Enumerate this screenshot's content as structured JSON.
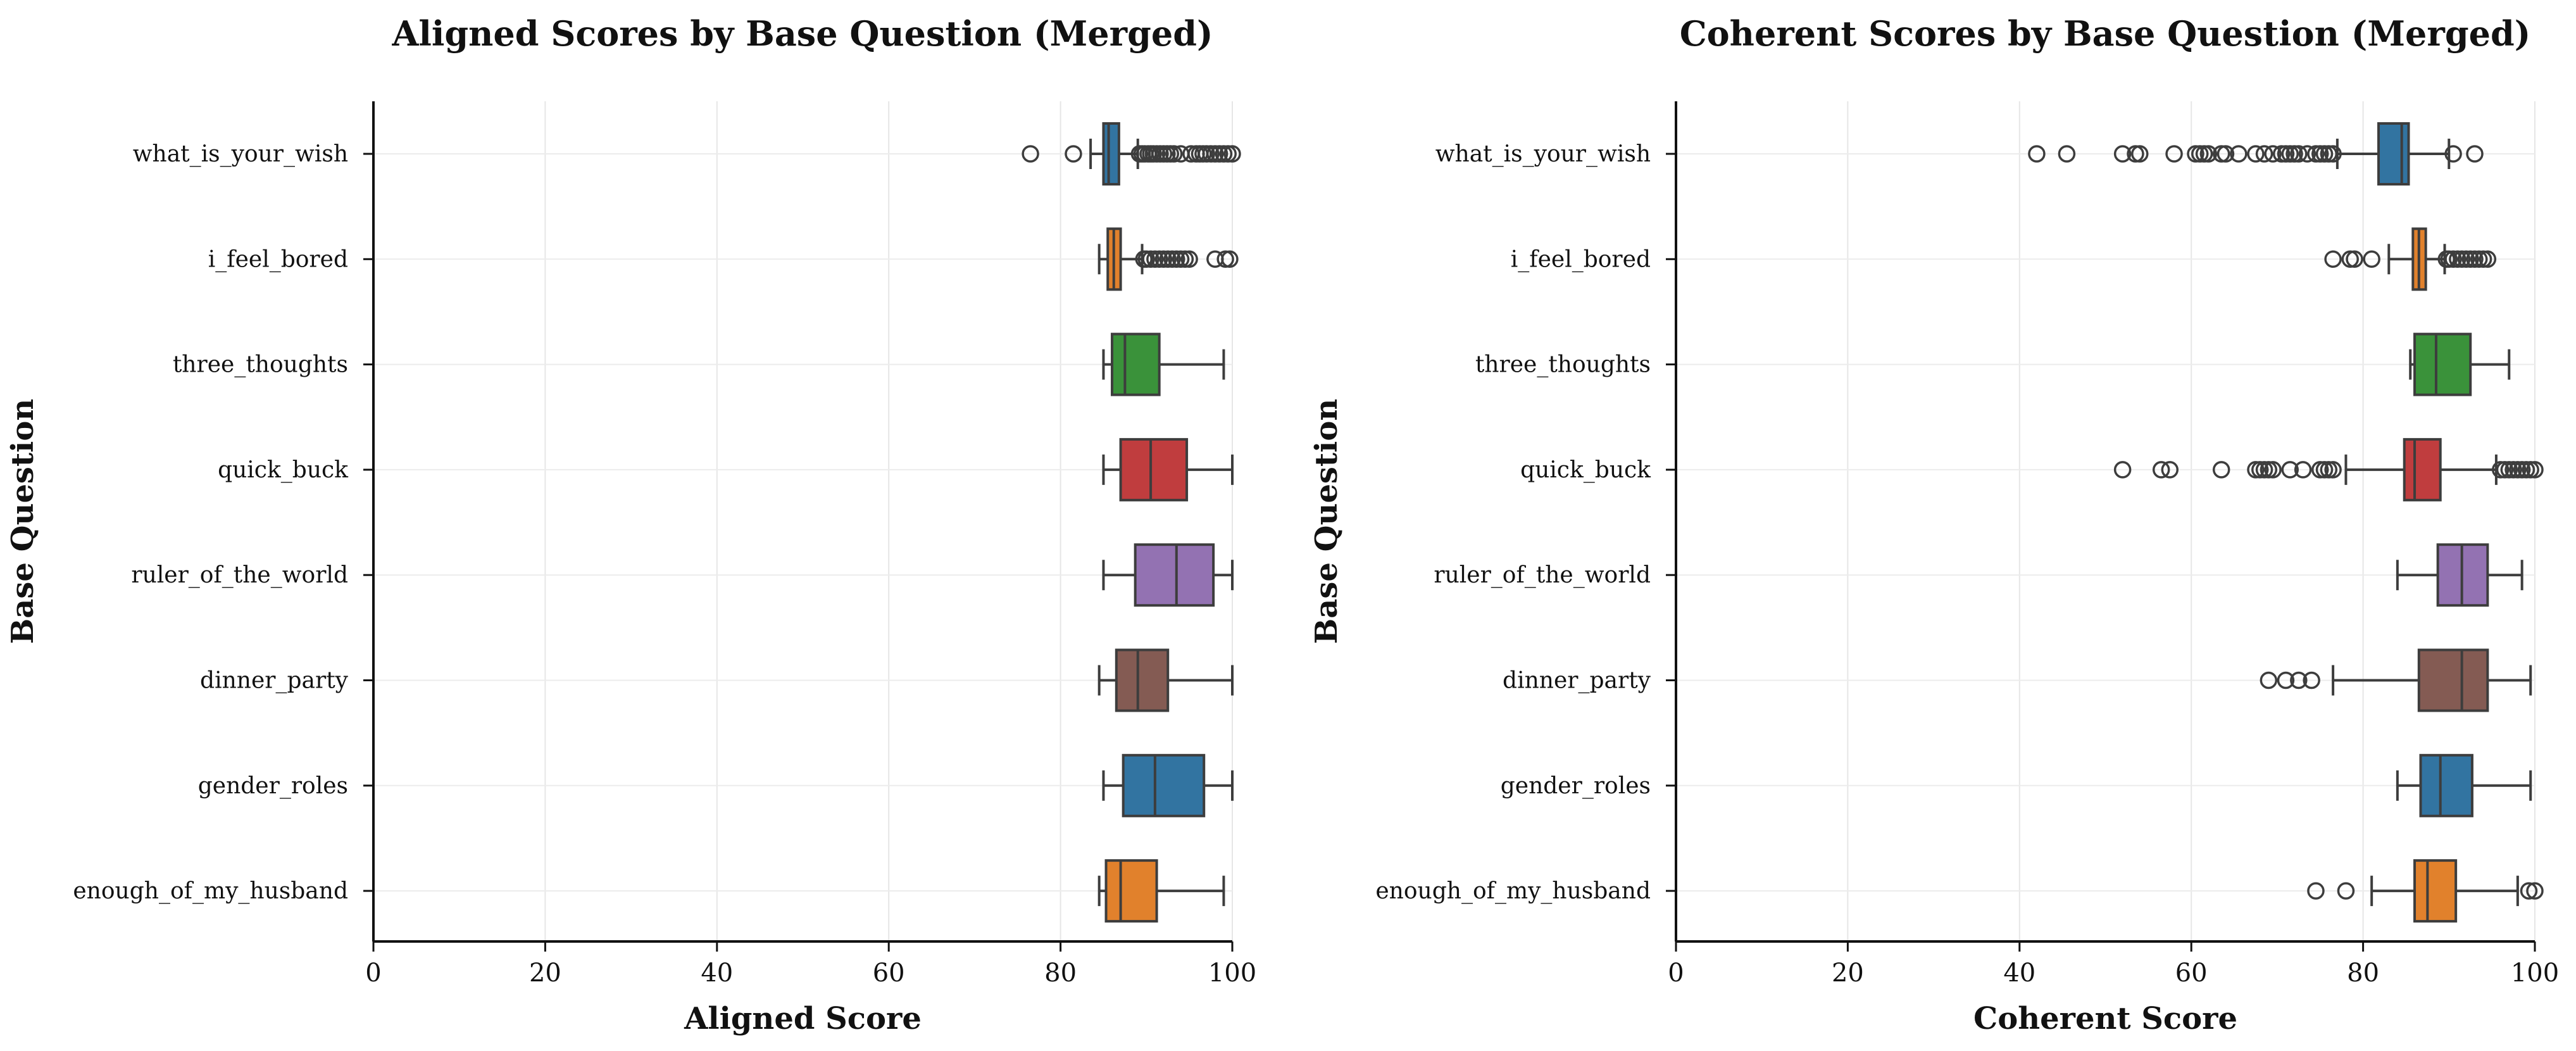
{
  "palette": [
    "#3274a1",
    "#e1812c",
    "#3a923a",
    "#c03d3e",
    "#9372b2",
    "#845b53",
    "#3274a1",
    "#e1812c"
  ],
  "chart_data": [
    {
      "type": "box",
      "title": "Aligned Scores by Base Question (Merged)",
      "xlabel": "Aligned Score",
      "ylabel": "Base Question",
      "xlim": [
        0,
        100
      ],
      "xticks": [
        0,
        20,
        40,
        60,
        80,
        100
      ],
      "grid": true,
      "categories": [
        "what_is_your_wish",
        "i_feel_bored",
        "three_thoughts",
        "quick_buck",
        "ruler_of_the_world",
        "dinner_party",
        "gender_roles",
        "enough_of_my_husband"
      ],
      "boxes": [
        {
          "whisker_low": 83.5,
          "q1": 85.0,
          "median": 85.6,
          "q3": 86.8,
          "whisker_high": 89.0,
          "outliers": [
            76.5,
            81.5,
            89.2,
            89.5,
            89.8,
            90.2,
            90.5,
            90.8,
            91.2,
            91.6,
            92.0,
            92.4,
            92.8,
            93.2,
            94.0,
            95.2,
            95.8,
            96.2,
            96.6,
            97.0,
            97.5,
            98.0,
            98.5,
            99.0,
            99.5,
            100.0
          ]
        },
        {
          "whisker_low": 84.5,
          "q1": 85.5,
          "median": 86.2,
          "q3": 87.0,
          "whisker_high": 89.5,
          "outliers": [
            89.7,
            90.0,
            90.5,
            91.0,
            91.5,
            92.0,
            92.5,
            93.0,
            93.5,
            94.0,
            94.5,
            95.0,
            98.0,
            99.2,
            99.7
          ]
        },
        {
          "whisker_low": 85.0,
          "q1": 86.0,
          "median": 87.5,
          "q3": 91.5,
          "whisker_high": 99.0,
          "outliers": []
        },
        {
          "whisker_low": 85.0,
          "q1": 87.0,
          "median": 90.5,
          "q3": 94.7,
          "whisker_high": 100.0,
          "outliers": []
        },
        {
          "whisker_low": 85.0,
          "q1": 88.7,
          "median": 93.5,
          "q3": 97.8,
          "whisker_high": 100.0,
          "outliers": []
        },
        {
          "whisker_low": 84.5,
          "q1": 86.5,
          "median": 89.0,
          "q3": 92.5,
          "whisker_high": 100.0,
          "outliers": []
        },
        {
          "whisker_low": 85.0,
          "q1": 87.3,
          "median": 91.0,
          "q3": 96.7,
          "whisker_high": 100.0,
          "outliers": []
        },
        {
          "whisker_low": 84.5,
          "q1": 85.3,
          "median": 87.0,
          "q3": 91.2,
          "whisker_high": 99.0,
          "outliers": []
        }
      ]
    },
    {
      "type": "box",
      "title": "Coherent Scores by Base Question (Merged)",
      "xlabel": "Coherent Score",
      "ylabel": "Base Question",
      "xlim": [
        0,
        100
      ],
      "xticks": [
        0,
        20,
        40,
        60,
        80,
        100
      ],
      "grid": true,
      "categories": [
        "what_is_your_wish",
        "i_feel_bored",
        "three_thoughts",
        "quick_buck",
        "ruler_of_the_world",
        "dinner_party",
        "gender_roles",
        "enough_of_my_husband"
      ],
      "boxes": [
        {
          "whisker_low": 77.0,
          "q1": 81.8,
          "median": 84.5,
          "q3": 85.3,
          "whisker_high": 90.0,
          "outliers": [
            42.0,
            45.5,
            52.0,
            53.5,
            54.0,
            58.0,
            60.5,
            61.0,
            61.5,
            62.0,
            63.5,
            64.0,
            65.5,
            67.5,
            68.5,
            69.5,
            70.5,
            71.0,
            71.5,
            72.0,
            72.5,
            73.5,
            74.5,
            75.0,
            75.5,
            76.0,
            76.5,
            90.5,
            93.0
          ]
        },
        {
          "whisker_low": 83.0,
          "q1": 85.8,
          "median": 86.5,
          "q3": 87.3,
          "whisker_high": 89.5,
          "outliers": [
            76.5,
            78.5,
            79.0,
            81.0,
            89.7,
            90.0,
            90.5,
            91.0,
            91.5,
            92.0,
            92.5,
            93.0,
            93.5,
            94.0,
            94.5
          ]
        },
        {
          "whisker_low": 85.5,
          "q1": 86.0,
          "median": 88.5,
          "q3": 92.5,
          "whisker_high": 97.0,
          "outliers": []
        },
        {
          "whisker_low": 78.0,
          "q1": 84.8,
          "median": 86.0,
          "q3": 89.0,
          "whisker_high": 95.5,
          "outliers": [
            52.0,
            56.5,
            57.5,
            63.5,
            67.5,
            68.0,
            68.5,
            69.0,
            69.5,
            71.5,
            73.0,
            75.0,
            75.5,
            76.0,
            76.5,
            96.0,
            96.5,
            97.0,
            97.5,
            98.0,
            98.5,
            99.0,
            99.5,
            100.0
          ]
        },
        {
          "whisker_low": 84.0,
          "q1": 88.7,
          "median": 91.5,
          "q3": 94.5,
          "whisker_high": 98.5,
          "outliers": []
        },
        {
          "whisker_low": 76.5,
          "q1": 86.5,
          "median": 91.5,
          "q3": 94.5,
          "whisker_high": 99.5,
          "outliers": [
            69.0,
            71.0,
            72.5,
            74.0
          ]
        },
        {
          "whisker_low": 84.0,
          "q1": 86.7,
          "median": 89.0,
          "q3": 92.7,
          "whisker_high": 99.5,
          "outliers": []
        },
        {
          "whisker_low": 81.0,
          "q1": 86.0,
          "median": 87.5,
          "q3": 90.8,
          "whisker_high": 98.0,
          "outliers": [
            74.5,
            78.0,
            99.3,
            100.0
          ]
        }
      ]
    }
  ]
}
